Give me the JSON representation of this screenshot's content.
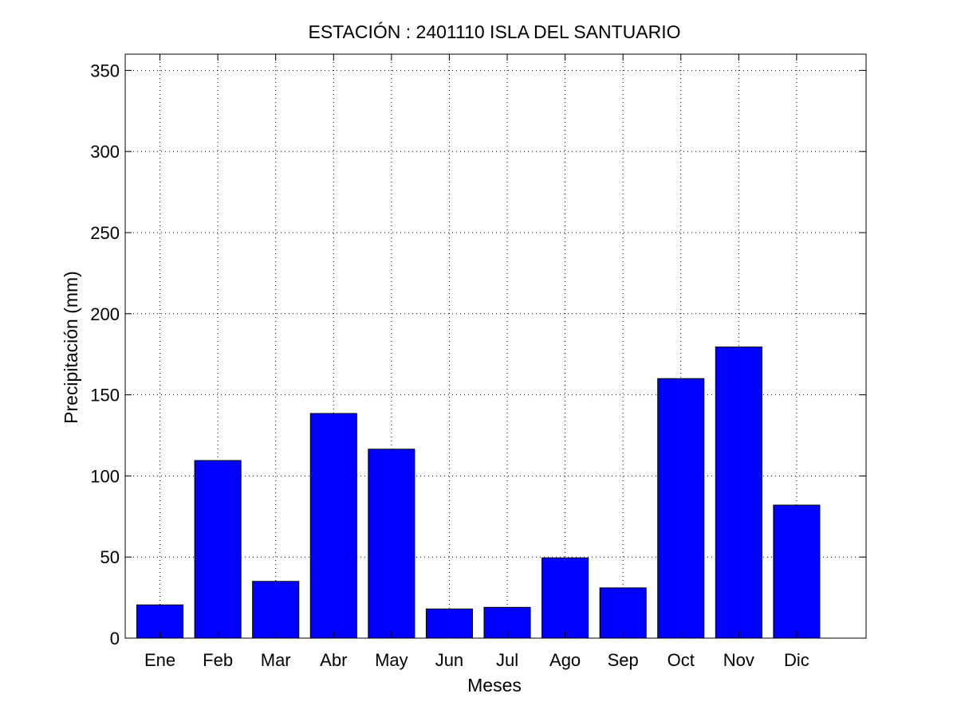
{
  "chart_data": {
    "type": "bar",
    "title": "ESTACIÓN :  2401110  ISLA DEL SANTUARIO",
    "xlabel": "Meses",
    "ylabel": "Precipitación (mm)",
    "categories": [
      "Ene",
      "Feb",
      "Mar",
      "Abr",
      "May",
      "Jun",
      "Jul",
      "Ago",
      "Sep",
      "Oct",
      "Nov",
      "Dic"
    ],
    "values": [
      20.5,
      109.5,
      35,
      138.5,
      116.5,
      18,
      19,
      49.5,
      31,
      160,
      179.5,
      82
    ],
    "ylim": [
      0,
      360
    ],
    "yticks": [
      0,
      50,
      100,
      150,
      200,
      250,
      300,
      350
    ],
    "grid": true,
    "bar_color": "#0000ff"
  }
}
